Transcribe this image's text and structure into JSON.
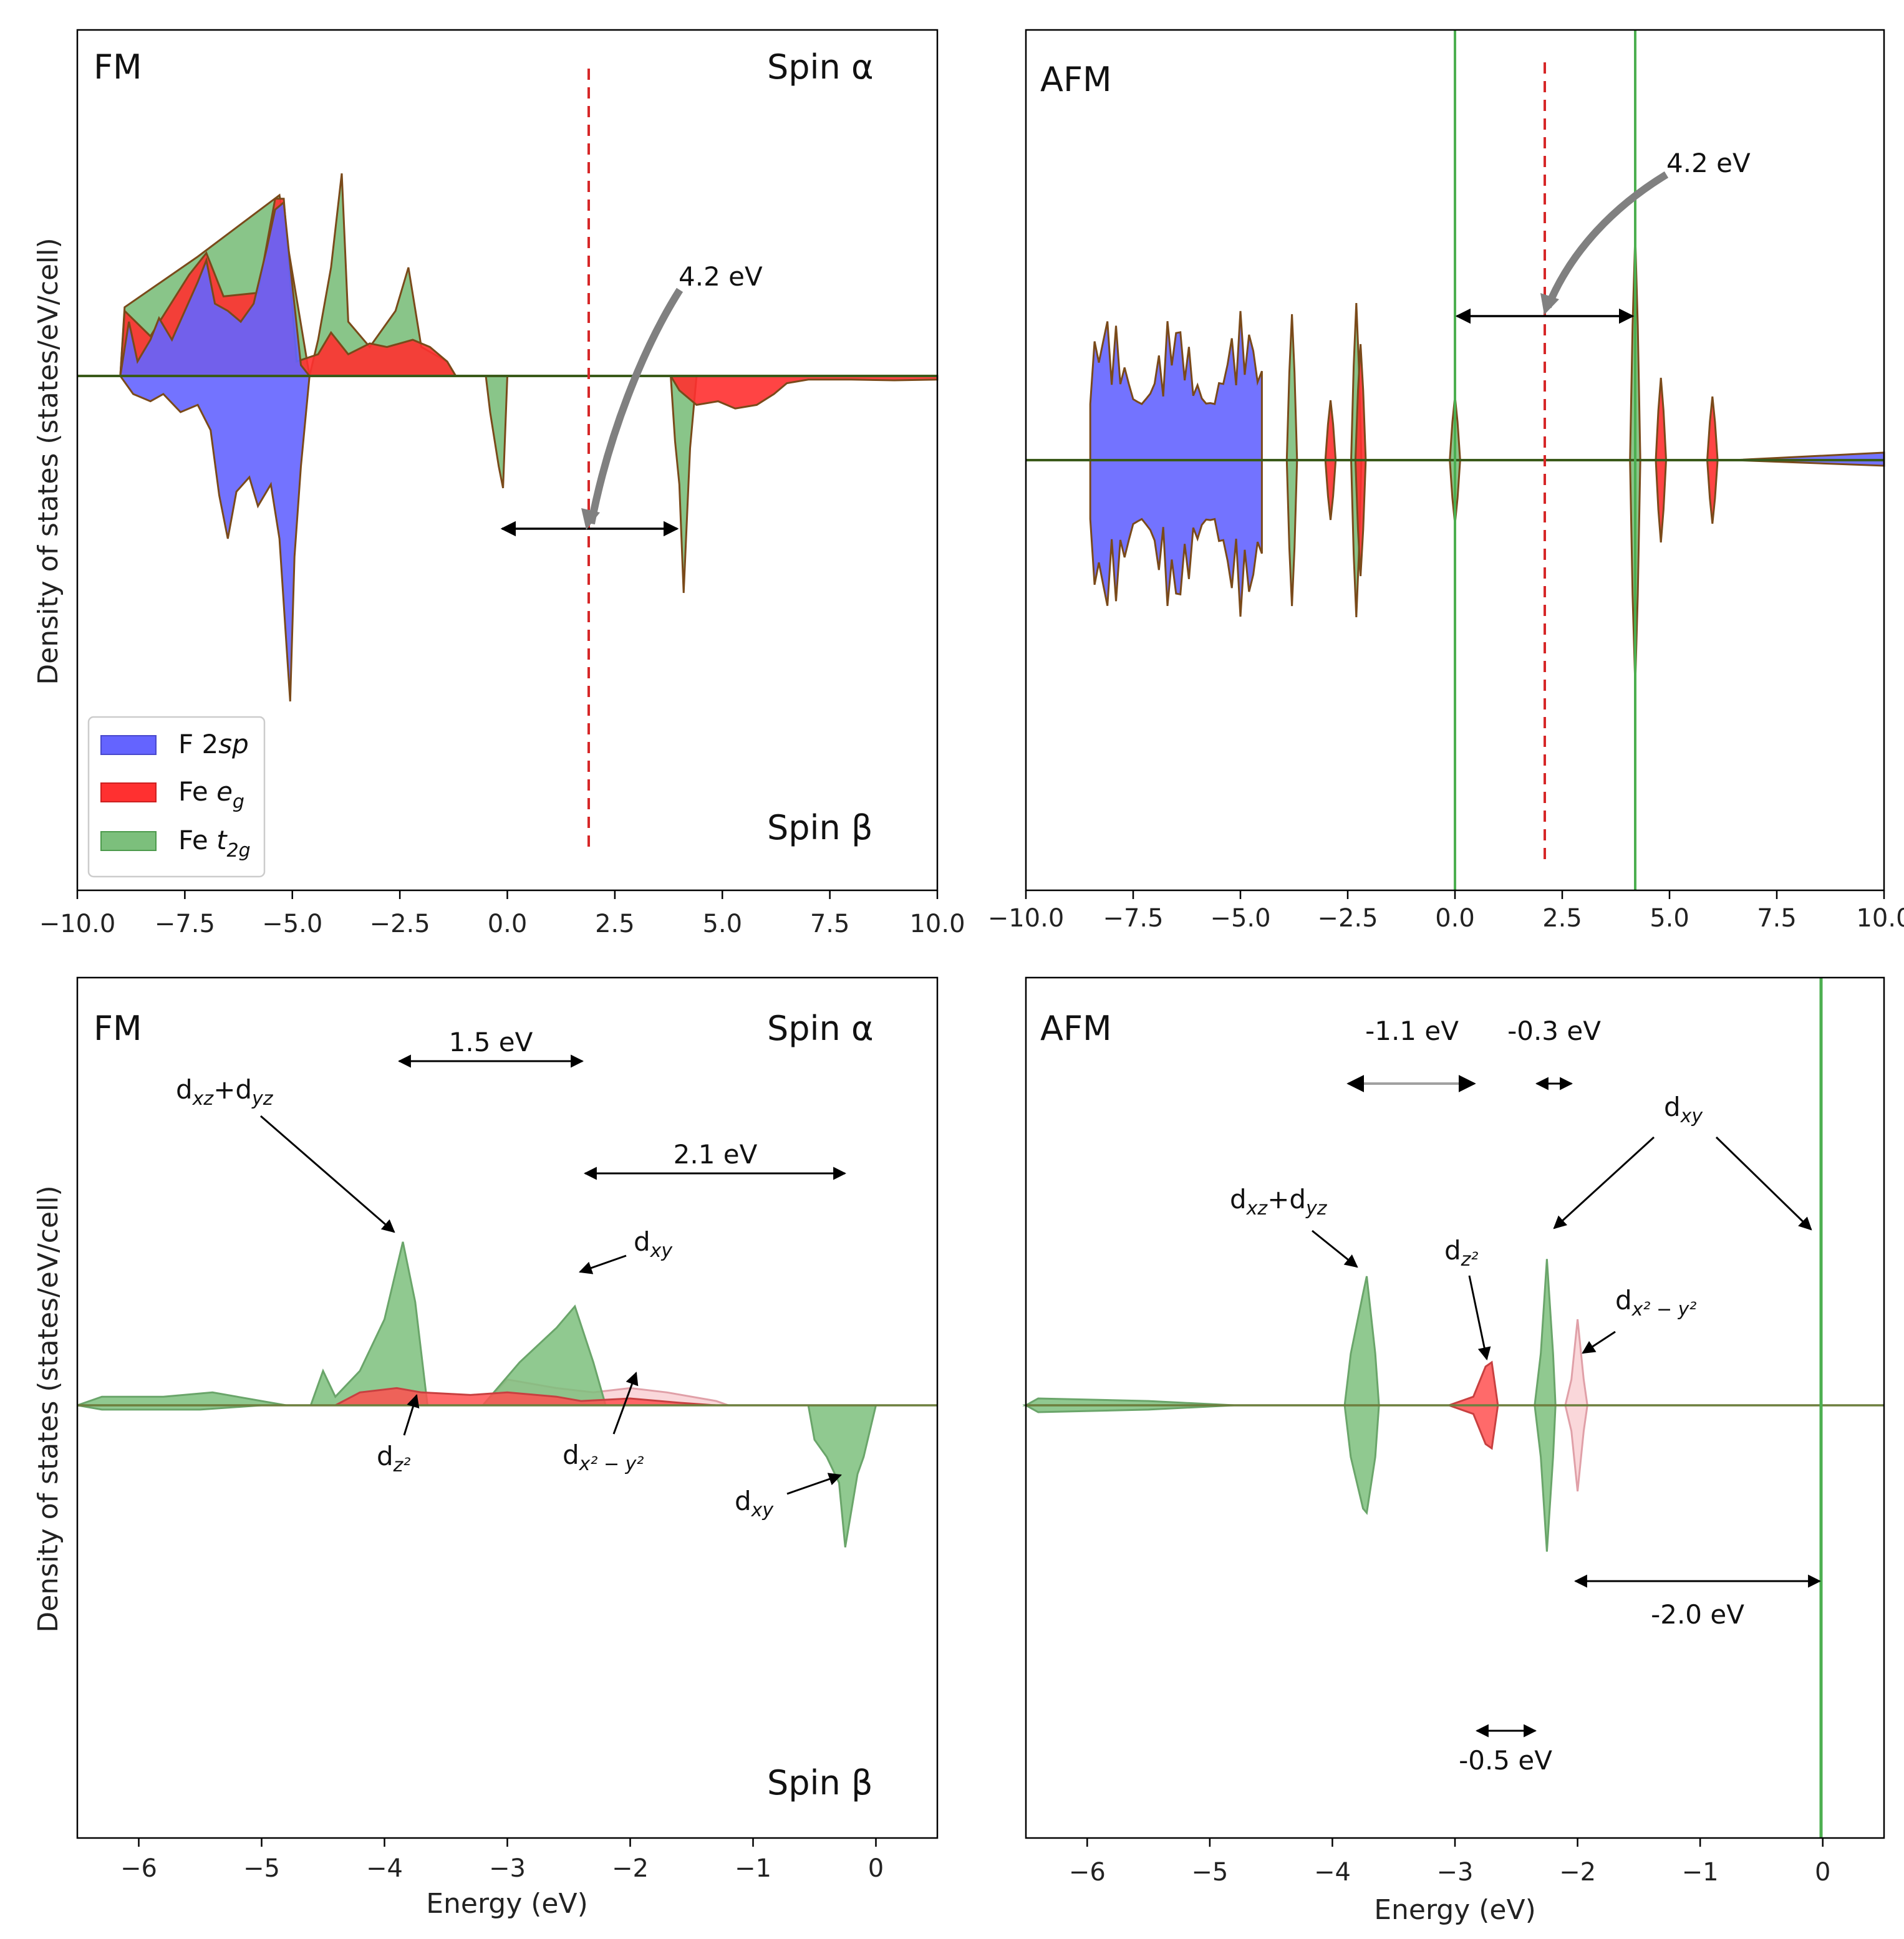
{
  "chart_data": [
    {
      "type": "area",
      "panel": "top-left",
      "corner_label": "FM",
      "spin_top": "Spin α",
      "spin_bottom": "Spin β",
      "ylabel": "Density of states (states/eV/cell)",
      "xlabel": "",
      "xlim": [
        -10,
        10
      ],
      "ylim": [
        -10.5,
        7
      ],
      "x_ticks": [
        -10,
        -7.5,
        -5,
        -2.5,
        0,
        2.5,
        5,
        7.5,
        10
      ],
      "x_tick_labels": [
        "−10.0",
        "−7.5",
        "−5.0",
        "−2.5",
        "0.0",
        "2.5",
        "5.0",
        "7.5",
        "10.0"
      ],
      "legend": {
        "position": "lower-left",
        "entries": [
          {
            "name": "F 2",
            "name_italic": "sp",
            "color": "#6464ff"
          },
          {
            "name": "Fe ",
            "name_italic": "e",
            "sub": "g",
            "color": "#ff3030"
          },
          {
            "name": "Fe ",
            "name_italic": "t",
            "sub": "2g",
            "color": "#7cbf7c"
          }
        ]
      },
      "series": [
        {
          "name": "F 2sp",
          "color": "#6464ff",
          "up": [
            [
              -9,
              0
            ],
            [
              -8.8,
              1.5
            ],
            [
              -8.6,
              0.4
            ],
            [
              -8.3,
              1.0
            ],
            [
              -8.1,
              1.6
            ],
            [
              -7.8,
              1.0
            ],
            [
              -7.5,
              1.8
            ],
            [
              -7.2,
              2.6
            ],
            [
              -7.0,
              3.2
            ],
            [
              -6.8,
              2.0
            ],
            [
              -6.5,
              1.8
            ],
            [
              -6.2,
              1.5
            ],
            [
              -5.9,
              2.0
            ],
            [
              -5.6,
              3.5
            ],
            [
              -5.4,
              4.6
            ],
            [
              -5.2,
              4.8
            ],
            [
              -5.0,
              2.5
            ],
            [
              -4.8,
              0.3
            ],
            [
              -4.6,
              0
            ]
          ],
          "down": [
            [
              -9,
              0
            ],
            [
              -8.7,
              -0.5
            ],
            [
              -8.3,
              -0.7
            ],
            [
              -8.0,
              -0.5
            ],
            [
              -7.6,
              -1.0
            ],
            [
              -7.2,
              -0.8
            ],
            [
              -6.9,
              -1.5
            ],
            [
              -6.7,
              -3.3
            ],
            [
              -6.5,
              -4.5
            ],
            [
              -6.3,
              -3.2
            ],
            [
              -6.0,
              -2.8
            ],
            [
              -5.8,
              -3.6
            ],
            [
              -5.5,
              -3.0
            ],
            [
              -5.3,
              -4.5
            ],
            [
              -5.15,
              -7.2
            ],
            [
              -5.05,
              -9.0
            ],
            [
              -4.95,
              -5.0
            ],
            [
              -4.8,
              -2.5
            ],
            [
              -4.6,
              0
            ]
          ]
        },
        {
          "name": "Fe eg",
          "color": "#ff3030",
          "up": [
            [
              -9,
              0
            ],
            [
              -8.9,
              1.8
            ],
            [
              -8.3,
              1.1
            ],
            [
              -7.4,
              2.8
            ],
            [
              -7.0,
              3.4
            ],
            [
              -6.6,
              2.2
            ],
            [
              -5.8,
              2.3
            ],
            [
              -5.4,
              4.9
            ],
            [
              -5.2,
              4.9
            ],
            [
              -4.9,
              0.4
            ],
            [
              -4.4,
              0.6
            ],
            [
              -4.1,
              1.2
            ],
            [
              -3.7,
              0.6
            ],
            [
              -3.2,
              0.9
            ],
            [
              -2.8,
              0.8
            ],
            [
              -2.5,
              0.9
            ],
            [
              -2.2,
              1.0
            ],
            [
              -1.8,
              0.8
            ],
            [
              -1.4,
              0.4
            ],
            [
              -1.2,
              0
            ]
          ],
          "down": [
            [
              3.8,
              0
            ],
            [
              4.0,
              -0.4
            ],
            [
              4.4,
              -0.8
            ],
            [
              4.9,
              -0.7
            ],
            [
              5.3,
              -0.9
            ],
            [
              5.8,
              -0.8
            ],
            [
              6.2,
              -0.5
            ],
            [
              6.5,
              -0.2
            ],
            [
              7.0,
              -0.1
            ],
            [
              8.0,
              -0.1
            ],
            [
              9.0,
              -0.12
            ],
            [
              10,
              -0.1
            ]
          ]
        },
        {
          "name": "Fe t2g",
          "color": "#7cbf7c",
          "up": [
            [
              -9,
              0
            ],
            [
              -8.9,
              1.9
            ],
            [
              -7.2,
              3.3
            ],
            [
              -5.3,
              5.0
            ],
            [
              -4.6,
              0
            ],
            [
              -4.4,
              1.0
            ],
            [
              -4.1,
              3.0
            ],
            [
              -3.85,
              5.6
            ],
            [
              -3.7,
              1.5
            ],
            [
              -3.2,
              0.8
            ],
            [
              -2.6,
              1.8
            ],
            [
              -2.3,
              3.0
            ],
            [
              -2.0,
              0.8
            ],
            [
              -1.4,
              0.4
            ],
            [
              -1.2,
              0
            ]
          ],
          "down": [
            [
              -0.5,
              0
            ],
            [
              -0.4,
              -1.0
            ],
            [
              -0.2,
              -2.5
            ],
            [
              -0.1,
              -3.1
            ],
            [
              0,
              0
            ],
            [
              3.8,
              0
            ],
            [
              3.9,
              -1.8
            ],
            [
              4.0,
              -3.0
            ],
            [
              4.1,
              -6.0
            ],
            [
              4.25,
              -2.0
            ],
            [
              4.4,
              0
            ]
          ]
        }
      ],
      "annotations": [
        {
          "text": "4.2 eV",
          "type": "arrow-double",
          "from": -0.1,
          "to": 4.1,
          "y": -3.1
        },
        {
          "type": "vline",
          "x": 1.9,
          "style": "dashed",
          "color": "#d62728"
        }
      ]
    },
    {
      "type": "area",
      "panel": "top-right",
      "corner_label": "AFM",
      "xlim": [
        -10,
        10
      ],
      "ylim": [
        -9,
        9
      ],
      "x_ticks": [
        -10,
        -7.5,
        -5,
        -2.5,
        0,
        2.5,
        5,
        7.5,
        10
      ],
      "x_tick_labels": [
        "−10.0",
        "−7.5",
        "−5.0",
        "−2.5",
        "0.0",
        "2.5",
        "5.0",
        "7.5",
        "10.0"
      ],
      "series": [
        {
          "name": "F 2sp",
          "color": "#6464ff",
          "x_range": [
            -8.5,
            -4.5
          ],
          "peak": 4.0
        },
        {
          "name": "Fe eg",
          "color": "#ff3030",
          "peaks": [
            -2.9,
            -2.2,
            4.8,
            6.0
          ]
        },
        {
          "name": "Fe t2g",
          "color": "#7cbf7c",
          "peaks": [
            -3.8,
            -2.3,
            0.0,
            4.2
          ]
        }
      ],
      "annotations": [
        {
          "text": "4.2 eV",
          "type": "arrow-double",
          "from": 0.0,
          "to": 4.2,
          "y": 3.0
        },
        {
          "type": "vline",
          "x": 2.1,
          "style": "dashed",
          "color": "#d62728"
        },
        {
          "type": "vline",
          "x": 0.0,
          "color": "#4caf50"
        },
        {
          "type": "vline",
          "x": 4.2,
          "color": "#4caf50"
        }
      ]
    },
    {
      "type": "area",
      "panel": "bottom-left",
      "corner_label": "FM",
      "spin_top": "Spin α",
      "spin_bottom": "Spin β",
      "ylabel": "Density of states (states/eV/cell)",
      "xlabel": "Energy (eV)",
      "xlim": [
        -6.5,
        0.5
      ],
      "ylim": [
        -4.9,
        3.3
      ],
      "x_ticks": [
        -6,
        -5,
        -4,
        -3,
        -2,
        -1,
        0
      ],
      "x_tick_labels": [
        "−6",
        "−5",
        "−4",
        "−3",
        "−2",
        "−1",
        "0"
      ],
      "series": [
        {
          "name": "dz2",
          "color": "#ff5050"
        },
        {
          "name": "dx2-y2",
          "color": "#f9d0d4"
        },
        {
          "name": "dxz+dyz / dxy",
          "color": "#7cbf7c"
        }
      ],
      "annotations": [
        {
          "text": "1.5 eV",
          "from": -3.85,
          "to": -2.4
        },
        {
          "text": "2.1 eV",
          "from": -2.35,
          "to": -0.25
        },
        {
          "text": "d",
          "sub": "xz",
          "text2": "+d",
          "sub2": "yz"
        },
        {
          "text": "d",
          "sub": "xy"
        },
        {
          "text": "d",
          "sub": "z²"
        },
        {
          "text": "d",
          "sub": "x² − y²"
        },
        {
          "text": "d",
          "sub": "xy",
          "spin": "beta"
        }
      ]
    },
    {
      "type": "area",
      "panel": "bottom-right",
      "corner_label": "AFM",
      "xlabel": "Energy (eV)",
      "xlim": [
        -6.5,
        0.5
      ],
      "ylim": [
        -4.9,
        3.3
      ],
      "x_ticks": [
        -6,
        -5,
        -4,
        -3,
        -2,
        -1,
        0
      ],
      "x_tick_labels": [
        "−6",
        "−5",
        "−4",
        "−3",
        "−2",
        "−1",
        "0"
      ],
      "annotations": [
        {
          "text": "-1.1 eV",
          "from": -3.85,
          "to": -2.8
        },
        {
          "text": "-0.3 eV",
          "from": -2.45,
          "to": -2.2
        },
        {
          "text": "-2.0 eV",
          "from": -2.0,
          "to": 0.0
        },
        {
          "text": "-0.5 eV",
          "from": -2.85,
          "to": -2.35
        },
        {
          "text": "d",
          "sub": "xz",
          "text2": "+d",
          "sub2": "yz"
        },
        {
          "text": "d",
          "sub": "z²"
        },
        {
          "text": "d",
          "sub": "xy"
        },
        {
          "text": "d",
          "sub": "x² − y²"
        }
      ]
    }
  ]
}
